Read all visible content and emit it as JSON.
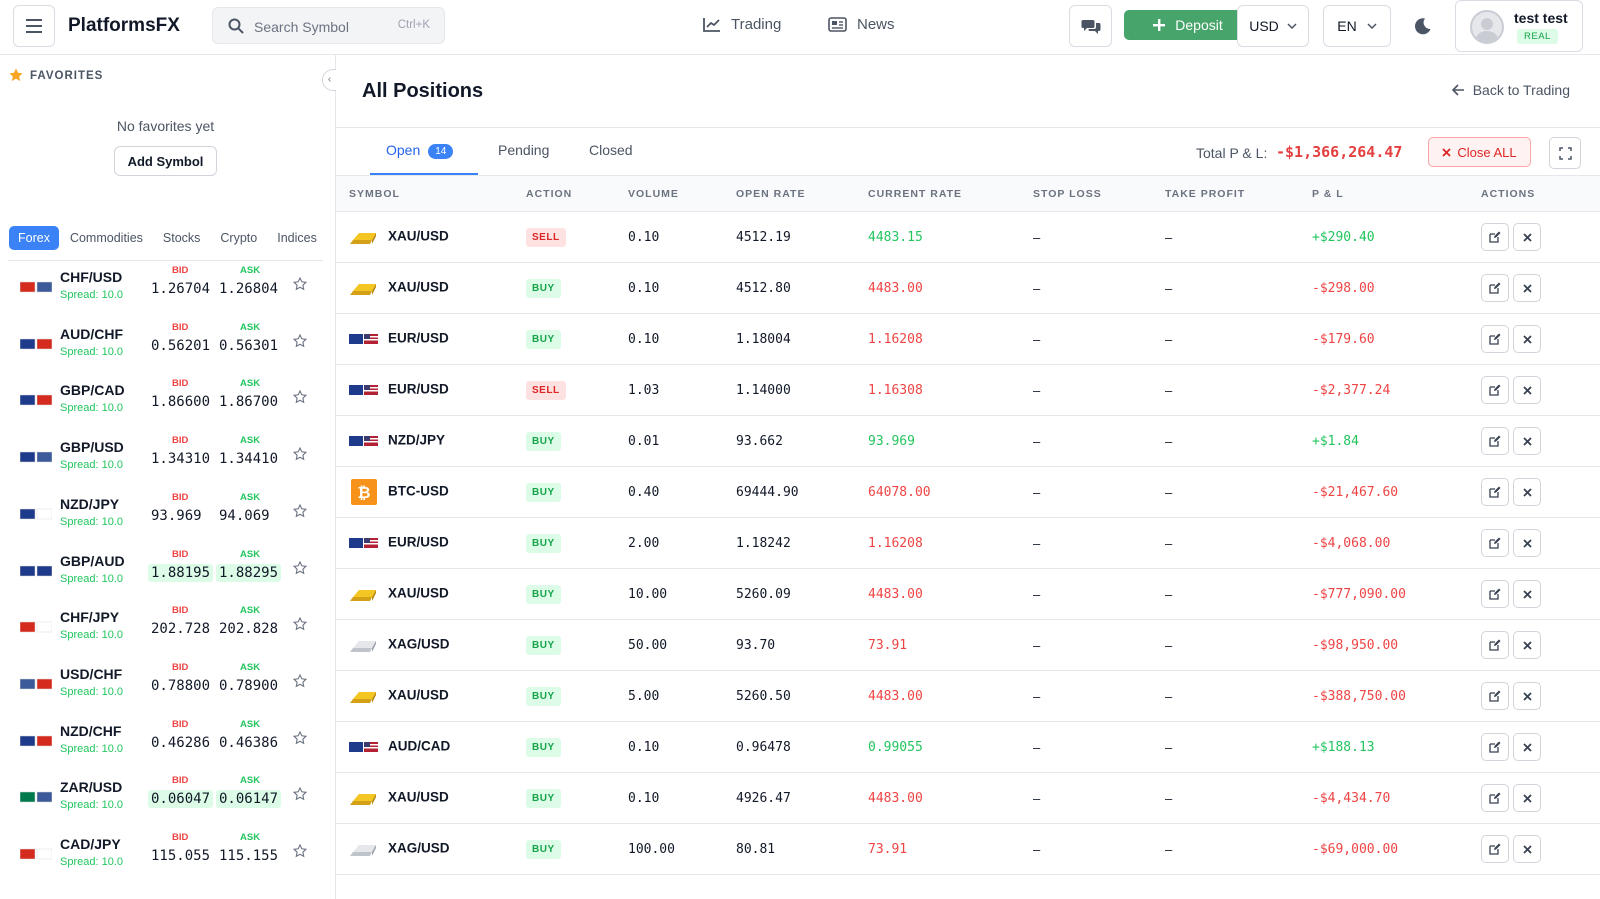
{
  "app": {
    "brand": "PlatformsFX"
  },
  "header": {
    "search_placeholder": "Search Symbol",
    "search_shortcut": "Ctrl+K",
    "nav": [
      {
        "label": "Trading",
        "icon": "chart-line-icon"
      },
      {
        "label": "News",
        "icon": "newspaper-icon"
      }
    ],
    "deposit_label": "Deposit",
    "currency": "USD",
    "language": "EN",
    "user_name": "test test",
    "account_type": "REAL"
  },
  "sidebar": {
    "favorites_title": "FAVORITES",
    "no_favorites": "No favorites yet",
    "add_symbol": "Add Symbol",
    "categories": [
      "Forex",
      "Commodities",
      "Stocks",
      "Crypto",
      "Indices"
    ],
    "active_category": "Forex",
    "bid_label": "BID",
    "ask_label": "ASK",
    "symbols": [
      {
        "name": "CHF/USD",
        "spread": "Spread: 10.0",
        "bid": "1.26704",
        "ask": "1.26804",
        "highlight": false,
        "flags": [
          "#d52b1e",
          "#3c5a99"
        ]
      },
      {
        "name": "AUD/CHF",
        "spread": "Spread: 10.0",
        "bid": "0.56201",
        "ask": "0.56301",
        "highlight": false,
        "flags": [
          "#1e3a8a",
          "#d52b1e"
        ]
      },
      {
        "name": "GBP/CAD",
        "spread": "Spread: 10.0",
        "bid": "1.86600",
        "ask": "1.86700",
        "highlight": false,
        "flags": [
          "#1e3a8a",
          "#d52b1e"
        ]
      },
      {
        "name": "GBP/USD",
        "spread": "Spread: 10.0",
        "bid": "1.34310",
        "ask": "1.34410",
        "highlight": false,
        "flags": [
          "#1e3a8a",
          "#3c5a99"
        ]
      },
      {
        "name": "NZD/JPY",
        "spread": "Spread: 10.0",
        "bid": "93.969",
        "ask": "94.069",
        "highlight": false,
        "flags": [
          "#1e3a8a",
          "#ffffff"
        ]
      },
      {
        "name": "GBP/AUD",
        "spread": "Spread: 10.0",
        "bid": "1.88195",
        "ask": "1.88295",
        "highlight": true,
        "flags": [
          "#1e3a8a",
          "#1e3a8a"
        ]
      },
      {
        "name": "CHF/JPY",
        "spread": "Spread: 10.0",
        "bid": "202.728",
        "ask": "202.828",
        "highlight": false,
        "flags": [
          "#d52b1e",
          "#ffffff"
        ]
      },
      {
        "name": "USD/CHF",
        "spread": "Spread: 10.0",
        "bid": "0.78800",
        "ask": "0.78900",
        "highlight": false,
        "flags": [
          "#3c5a99",
          "#d52b1e"
        ]
      },
      {
        "name": "NZD/CHF",
        "spread": "Spread: 10.0",
        "bid": "0.46286",
        "ask": "0.46386",
        "highlight": false,
        "flags": [
          "#1e3a8a",
          "#d52b1e"
        ]
      },
      {
        "name": "ZAR/USD",
        "spread": "Spread: 10.0",
        "bid": "0.06047",
        "ask": "0.06147",
        "highlight": true,
        "flags": [
          "#007a4d",
          "#3c5a99"
        ]
      },
      {
        "name": "CAD/JPY",
        "spread": "Spread: 10.0",
        "bid": "115.055",
        "ask": "115.155",
        "highlight": false,
        "flags": [
          "#d52b1e",
          "#ffffff"
        ]
      }
    ]
  },
  "main": {
    "title": "All Positions",
    "back_label": "Back to Trading",
    "tabs": [
      {
        "label": "Open",
        "badge": "14"
      },
      {
        "label": "Pending"
      },
      {
        "label": "Closed"
      }
    ],
    "total_pl_label": "Total P & L:",
    "total_pl_value": "-$1,366,264.47",
    "close_all_label": "Close ALL",
    "columns": [
      "SYMBOL",
      "ACTION",
      "VOLUME",
      "OPEN RATE",
      "CURRENT RATE",
      "STOP LOSS",
      "TAKE PROFIT",
      "P & L",
      "ACTIONS"
    ],
    "positions": [
      {
        "symbol": "XAU/USD",
        "icon": "gold-bar-icon",
        "action": "SELL",
        "volume": "0.10",
        "open_rate": "4512.19",
        "current_rate": "4483.15",
        "rate_dir": "pos",
        "stop_loss": "–",
        "take_profit": "–",
        "pl": "+$290.40",
        "pl_dir": "pos"
      },
      {
        "symbol": "XAU/USD",
        "icon": "gold-bar-icon",
        "action": "BUY",
        "volume": "0.10",
        "open_rate": "4512.80",
        "current_rate": "4483.00",
        "rate_dir": "neg",
        "stop_loss": "–",
        "take_profit": "–",
        "pl": "-$298.00",
        "pl_dir": "neg"
      },
      {
        "symbol": "EUR/USD",
        "icon": "flag-pair-icon",
        "action": "BUY",
        "volume": "0.10",
        "open_rate": "1.18004",
        "current_rate": "1.16208",
        "rate_dir": "neg",
        "stop_loss": "–",
        "take_profit": "–",
        "pl": "-$179.60",
        "pl_dir": "neg"
      },
      {
        "symbol": "EUR/USD",
        "icon": "flag-pair-icon",
        "action": "SELL",
        "volume": "1.03",
        "open_rate": "1.14000",
        "current_rate": "1.16308",
        "rate_dir": "neg",
        "stop_loss": "–",
        "take_profit": "–",
        "pl": "-$2,377.24",
        "pl_dir": "neg"
      },
      {
        "symbol": "NZD/JPY",
        "icon": "flag-pair-icon",
        "action": "BUY",
        "volume": "0.01",
        "open_rate": "93.662",
        "current_rate": "93.969",
        "rate_dir": "pos",
        "stop_loss": "–",
        "take_profit": "–",
        "pl": "+$1.84",
        "pl_dir": "pos"
      },
      {
        "symbol": "BTC-USD",
        "icon": "bitcoin-icon",
        "action": "BUY",
        "volume": "0.40",
        "open_rate": "69444.90",
        "current_rate": "64078.00",
        "rate_dir": "neg",
        "stop_loss": "–",
        "take_profit": "–",
        "pl": "-$21,467.60",
        "pl_dir": "neg"
      },
      {
        "symbol": "EUR/USD",
        "icon": "flag-pair-icon",
        "action": "BUY",
        "volume": "2.00",
        "open_rate": "1.18242",
        "current_rate": "1.16208",
        "rate_dir": "neg",
        "stop_loss": "–",
        "take_profit": "–",
        "pl": "-$4,068.00",
        "pl_dir": "neg"
      },
      {
        "symbol": "XAU/USD",
        "icon": "gold-bar-icon",
        "action": "BUY",
        "volume": "10.00",
        "open_rate": "5260.09",
        "current_rate": "4483.00",
        "rate_dir": "neg",
        "stop_loss": "–",
        "take_profit": "–",
        "pl": "-$777,090.00",
        "pl_dir": "neg"
      },
      {
        "symbol": "XAG/USD",
        "icon": "silver-bar-icon",
        "action": "BUY",
        "volume": "50.00",
        "open_rate": "93.70",
        "current_rate": "73.91",
        "rate_dir": "neg",
        "stop_loss": "–",
        "take_profit": "–",
        "pl": "-$98,950.00",
        "pl_dir": "neg"
      },
      {
        "symbol": "XAU/USD",
        "icon": "gold-bar-icon",
        "action": "BUY",
        "volume": "5.00",
        "open_rate": "5260.50",
        "current_rate": "4483.00",
        "rate_dir": "neg",
        "stop_loss": "–",
        "take_profit": "–",
        "pl": "-$388,750.00",
        "pl_dir": "neg"
      },
      {
        "symbol": "AUD/CAD",
        "icon": "flag-pair-icon",
        "action": "BUY",
        "volume": "0.10",
        "open_rate": "0.96478",
        "current_rate": "0.99055",
        "rate_dir": "pos",
        "stop_loss": "–",
        "take_profit": "–",
        "pl": "+$188.13",
        "pl_dir": "pos"
      },
      {
        "symbol": "XAU/USD",
        "icon": "gold-bar-icon",
        "action": "BUY",
        "volume": "0.10",
        "open_rate": "4926.47",
        "current_rate": "4483.00",
        "rate_dir": "neg",
        "stop_loss": "–",
        "take_profit": "–",
        "pl": "-$4,434.70",
        "pl_dir": "neg"
      },
      {
        "symbol": "XAG/USD",
        "icon": "silver-bar-icon",
        "action": "BUY",
        "volume": "100.00",
        "open_rate": "80.81",
        "current_rate": "73.91",
        "rate_dir": "neg",
        "stop_loss": "–",
        "take_profit": "–",
        "pl": "-$69,000.00",
        "pl_dir": "neg"
      }
    ]
  },
  "colors": {
    "accent": "#3b82f6",
    "positive": "#22c55e",
    "negative": "#ef4444",
    "deposit": "#47a46a"
  }
}
